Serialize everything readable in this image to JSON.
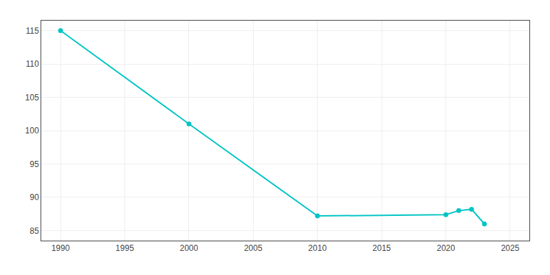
{
  "chart_data": {
    "type": "line",
    "x": [
      1990,
      2000,
      2010,
      2020,
      2021,
      2022,
      2023
    ],
    "values": [
      115,
      101,
      87.2,
      87.4,
      88.0,
      88.2,
      86.0
    ],
    "color": "#00c4c4",
    "marker": "circle",
    "xlim": [
      1988.5,
      2026.5
    ],
    "ylim": [
      83.5,
      116.5
    ],
    "xticks": [
      1990,
      1995,
      2000,
      2005,
      2010,
      2015,
      2020,
      2025
    ],
    "yticks": [
      85,
      90,
      95,
      100,
      105,
      110,
      115
    ],
    "grid": true
  }
}
